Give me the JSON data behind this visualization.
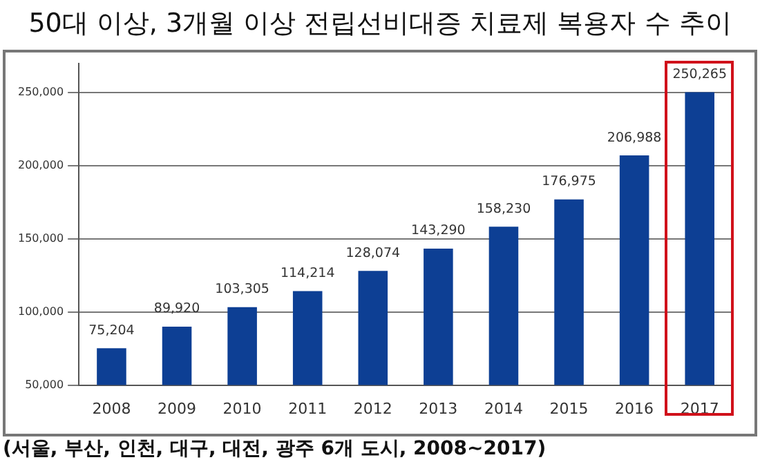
{
  "chart_data": {
    "type": "bar",
    "title": "50대 이상, 3개월 이상 전립선비대증 치료제 복용자 수 추이",
    "categories": [
      "2008",
      "2009",
      "2010",
      "2011",
      "2012",
      "2013",
      "2014",
      "2015",
      "2016",
      "2017"
    ],
    "values": [
      75204,
      89920,
      103305,
      114214,
      128074,
      143290,
      158230,
      176975,
      206988,
      250265
    ],
    "color": "#0d3f94",
    "value_labels": [
      "75,204",
      "89,920",
      "103,305",
      "114,214",
      "128,074",
      "143,290",
      "158,230",
      "176,975",
      "206,988",
      "250,265"
    ],
    "ylim": [
      50000,
      270000
    ],
    "yticks": [
      {
        "value": 50000,
        "label": "50,000"
      },
      {
        "value": 100000,
        "label": "100,000"
      },
      {
        "value": 150000,
        "label": "150,000"
      },
      {
        "value": 200000,
        "label": "200,000"
      },
      {
        "value": 250000,
        "label": "250,000"
      }
    ],
    "grid": "y",
    "annotations": [
      "(서울, 부산, 인천, 대구, 대전, 광주 6개 도시, 2008~2017)"
    ]
  }
}
